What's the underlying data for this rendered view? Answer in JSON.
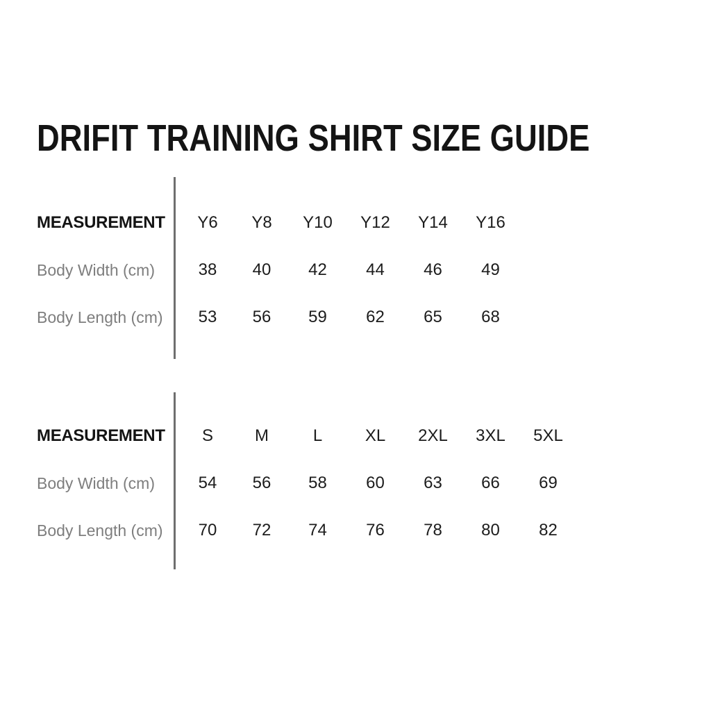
{
  "title": "DRIFIT TRAINING SHIRT SIZE GUIDE",
  "colors": {
    "background": "#ffffff",
    "title_text": "#141414",
    "header_text": "#141414",
    "row_label_text": "#7e7e7e",
    "value_text": "#1c1c1c",
    "divider": "#6e6e6e"
  },
  "chart_data": [
    {
      "type": "table",
      "header_label": "MEASUREMENT",
      "columns": [
        "Y6",
        "Y8",
        "Y10",
        "Y12",
        "Y14",
        "Y16"
      ],
      "rows": [
        {
          "label": "Body Width (cm)",
          "values": [
            38,
            40,
            42,
            44,
            46,
            49
          ]
        },
        {
          "label": "Body Length (cm)",
          "values": [
            53,
            56,
            59,
            62,
            65,
            68
          ]
        }
      ]
    },
    {
      "type": "table",
      "header_label": "MEASUREMENT",
      "columns": [
        "S",
        "M",
        "L",
        "XL",
        "2XL",
        "3XL",
        "5XL"
      ],
      "rows": [
        {
          "label": "Body Width (cm)",
          "values": [
            54,
            56,
            58,
            60,
            63,
            66,
            69
          ]
        },
        {
          "label": "Body Length (cm)",
          "values": [
            70,
            72,
            74,
            76,
            78,
            80,
            82
          ]
        }
      ]
    }
  ]
}
